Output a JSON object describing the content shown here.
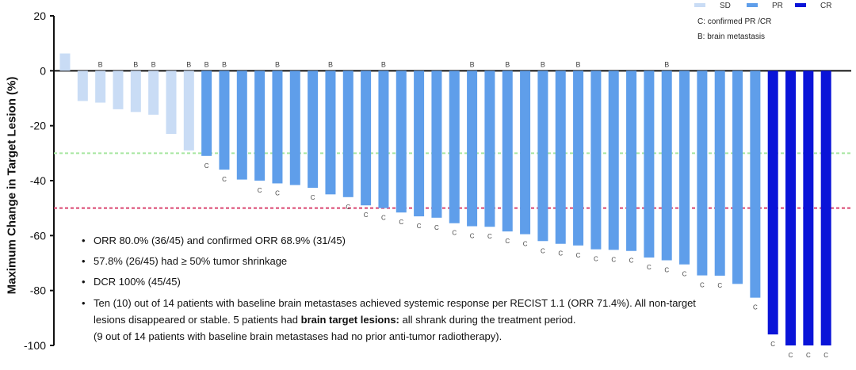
{
  "chart_data": {
    "type": "bar",
    "ylabel": "Maximum Change in Target Lesion    (%)",
    "ylim": [
      -100,
      20
    ],
    "yticks": [
      20,
      0,
      -20,
      -40,
      -60,
      -80,
      -100
    ],
    "grid": false,
    "legend_placement": "top-right",
    "colors": {
      "SD": "#c9dcf5",
      "PR": "#5f9eea",
      "CR": "#0a14d8"
    },
    "reference_lines": [
      {
        "y": -30,
        "color": "#a6e6a0",
        "style": "dashed"
      },
      {
        "y": -50,
        "color": "#d9446f",
        "style": "dashed"
      }
    ],
    "legend": [
      "SD",
      "PR",
      "CR"
    ],
    "legend_notes": [
      "C: confirmed PR /CR",
      "B: brain metastasis"
    ],
    "values": [
      6.3,
      -11,
      -11.6,
      -14,
      -15,
      -16,
      -23,
      -29,
      -31,
      -36,
      -39.6,
      -40,
      -41,
      -41.6,
      -42.6,
      -45,
      -46,
      -49,
      -50,
      -51.6,
      -53,
      -53.5,
      -55.5,
      -56.6,
      -56.8,
      -58.5,
      -59.5,
      -62,
      -63,
      -63.6,
      -65,
      -65.2,
      -65.6,
      -68,
      -69,
      -70.5,
      -74.5,
      -74.6,
      -77.6,
      -82.6,
      -96,
      -100,
      -100,
      -100
    ],
    "categories_response": [
      "SD",
      "SD",
      "SD",
      "SD",
      "SD",
      "SD",
      "SD",
      "SD",
      "PR",
      "PR",
      "PR",
      "PR",
      "PR",
      "PR",
      "PR",
      "PR",
      "PR",
      "PR",
      "PR",
      "PR",
      "PR",
      "PR",
      "PR",
      "PR",
      "PR",
      "PR",
      "PR",
      "PR",
      "PR",
      "PR",
      "PR",
      "PR",
      "PR",
      "PR",
      "PR",
      "PR",
      "PR",
      "PR",
      "PR",
      "PR",
      "CR",
      "CR",
      "CR",
      "CR"
    ],
    "b_marker": "B",
    "c_marker": "C",
    "brain_metastasis": [
      false,
      false,
      true,
      false,
      true,
      true,
      false,
      true,
      true,
      true,
      false,
      false,
      true,
      false,
      false,
      true,
      false,
      false,
      true,
      false,
      false,
      false,
      false,
      true,
      false,
      true,
      false,
      true,
      false,
      true,
      false,
      false,
      false,
      false,
      true,
      false,
      false,
      false,
      false,
      false,
      false,
      false,
      false,
      false
    ],
    "confirmed": [
      false,
      false,
      false,
      false,
      false,
      false,
      false,
      false,
      true,
      true,
      false,
      true,
      true,
      false,
      true,
      false,
      true,
      true,
      true,
      true,
      true,
      true,
      true,
      true,
      true,
      true,
      true,
      true,
      true,
      true,
      true,
      true,
      true,
      true,
      true,
      true,
      true,
      true,
      false,
      true,
      true,
      true,
      true,
      true
    ]
  },
  "notes": {
    "n1": "ORR 80.0% (36/45) and confirmed ORR 68.9% (31/45)",
    "n2": "57.8% (26/45) had ≥ 50% tumor shrinkage",
    "n3": "DCR 100% (45/45)",
    "n4a": "Ten (10) out of 14 patients with baseline brain metastases achieved systemic response per RECIST 1.1 (ORR 71.4%). All non-target",
    "n4b": "lesions disappeared or stable. 5 patients had ",
    "n4bold": "brain target lesions:",
    "n4c": " all shrank during the treatment period.",
    "n4d": "(9 out of 14 patients with baseline brain metastases had no prior anti-tumor radiotherapy)."
  }
}
